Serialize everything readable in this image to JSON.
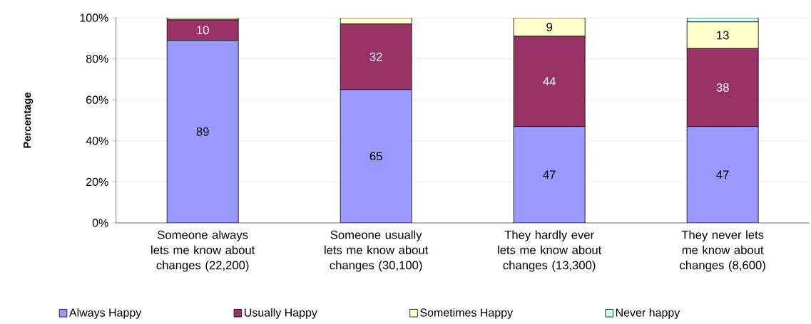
{
  "chart_data": {
    "type": "bar",
    "stacked": true,
    "ylabel": "Percentage",
    "categories": [
      "Someone always lets me know about changes (22,200)",
      "Someone usually lets me know about changes (30,100)",
      "They hardly ever lets me know about changes (13,300)",
      "They never lets me know about changes (8,600)"
    ],
    "series": [
      {
        "name": "Always Happy",
        "color": "#9999ff",
        "values": [
          89,
          65,
          47,
          47
        ],
        "value_labels": [
          "89",
          "65",
          "47",
          "47"
        ]
      },
      {
        "name": "Usually Happy",
        "color": "#993366",
        "values": [
          10,
          32,
          44,
          38
        ],
        "value_labels": [
          "10",
          "32",
          "44",
          "38"
        ]
      },
      {
        "name": "Sometimes Happy",
        "color": "#ffffcc",
        "values": [
          1,
          3,
          9,
          13
        ],
        "value_labels": [
          null,
          null,
          "9",
          "13"
        ]
      },
      {
        "name": "Never happy",
        "color": "#ccffff",
        "values": [
          0,
          0,
          0,
          2
        ],
        "value_labels": [
          null,
          null,
          null,
          null
        ]
      }
    ],
    "ylim": [
      0,
      100
    ],
    "yticks": [
      {
        "value": 0,
        "label": "0%"
      },
      {
        "value": 20,
        "label": "20%"
      },
      {
        "value": 40,
        "label": "40%"
      },
      {
        "value": 60,
        "label": "60%"
      },
      {
        "value": 80,
        "label": "80%"
      },
      {
        "value": 100,
        "label": "100%"
      }
    ],
    "grid": "y",
    "legend": "bottom"
  }
}
